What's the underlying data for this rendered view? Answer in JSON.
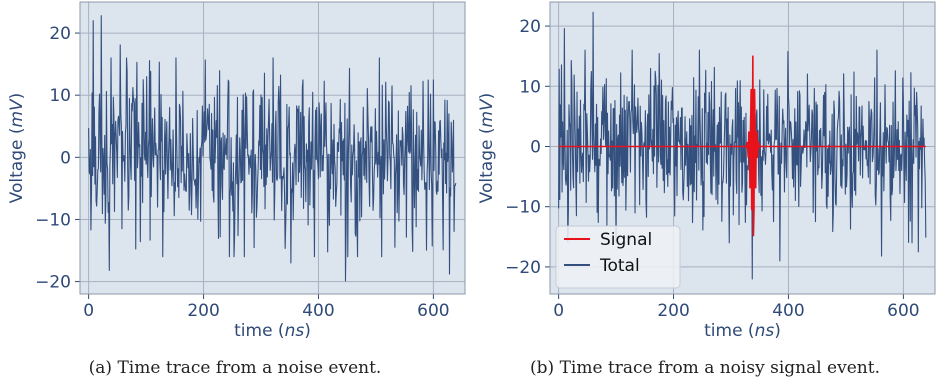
{
  "chart_data": [
    {
      "type": "line",
      "title": "",
      "xlabel": "time (ns)",
      "ylabel": "Voltage (mV)",
      "xlim": [
        -15,
        655
      ],
      "ylim": [
        -22,
        25
      ],
      "xticks": [
        0,
        200,
        400,
        600
      ],
      "yticks": [
        -20,
        -10,
        0,
        10,
        20
      ],
      "grid": true,
      "background": "#dce4ee",
      "grid_color": "#a7b1c0",
      "series": [
        {
          "color": "#33507f",
          "description": "noise trace, 640 samples, amplitude mostly within ±10 mV with spikes to ±20 mV",
          "n": 640,
          "seed": 17,
          "sigma": 6.5,
          "peaks": [
            [
              22,
              22.8
            ],
            [
              8,
              22.0
            ],
            [
              36,
              -18.2
            ],
            [
              352,
              -17.0
            ],
            [
              447,
              -19.9
            ],
            [
              628,
              -18.8
            ],
            [
              55,
              18.1
            ]
          ]
        }
      ],
      "caption": "(a) Time trace from a noise event."
    },
    {
      "type": "line",
      "title": "",
      "xlabel": "time (ns)",
      "ylabel": "Voltage (mV)",
      "xlim": [
        -15,
        655
      ],
      "ylim": [
        -24.5,
        24
      ],
      "xticks": [
        0,
        200,
        400,
        600
      ],
      "yticks": [
        -20,
        -10,
        0,
        10,
        20
      ],
      "grid": true,
      "legend": "bottom-left",
      "background": "#dce4ee",
      "grid_color": "#a7b1c0",
      "series": [
        {
          "name": "Total",
          "color": "#33507f",
          "n": 640,
          "seed": 91,
          "sigma": 6.5,
          "peaks": [
            [
              60,
              22.3
            ],
            [
              337,
              -22.0
            ],
            [
              385,
              -19.0
            ],
            [
              562,
              -18.2
            ],
            [
              626,
              -17.5
            ],
            [
              10,
              19.6
            ]
          ]
        },
        {
          "name": "Signal",
          "color": "#e8121a",
          "n": 640,
          "pulse_center": 338,
          "pulse_width": 8,
          "pulse_peak": 15.0,
          "pulse_min": -14.8
        }
      ],
      "caption": "(b) Time trace from a noisy signal event."
    }
  ]
}
